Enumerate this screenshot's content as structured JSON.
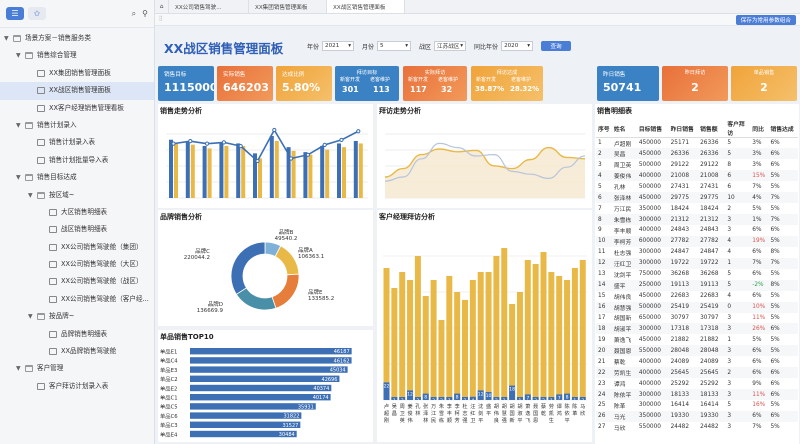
{
  "sidebar": {
    "tabs": [
      {
        "name": "list-icon",
        "glyph": "☰"
      },
      {
        "name": "star-icon",
        "glyph": "✩"
      }
    ],
    "tools": [
      {
        "name": "search-icon",
        "glyph": "🔍"
      },
      {
        "name": "filter-icon",
        "glyph": "⚲"
      }
    ],
    "tree": [
      {
        "text": "场景方案－销售服务类",
        "level": 0,
        "arrow": "▼",
        "icon": "folder"
      },
      {
        "text": "销售综合管理",
        "level": 1,
        "arrow": "▼",
        "icon": "folder"
      },
      {
        "text": "XX集团销售管理面板",
        "level": 2,
        "arrow": "",
        "icon": "doc"
      },
      {
        "text": "XX战区销售管理面板",
        "level": 2,
        "arrow": "",
        "icon": "doc",
        "selected": true
      },
      {
        "text": "XX客户经理销售管理看板",
        "level": 2,
        "arrow": "",
        "icon": "doc"
      },
      {
        "text": "销售计划录入",
        "level": 1,
        "arrow": "▼",
        "icon": "folder"
      },
      {
        "text": "销售计划录入表",
        "level": 2,
        "arrow": "",
        "icon": "doc"
      },
      {
        "text": "销售计划批量导入表",
        "level": 2,
        "arrow": "",
        "icon": "doc"
      },
      {
        "text": "销售目标达成",
        "level": 1,
        "arrow": "▼",
        "icon": "folder"
      },
      {
        "text": "按区域~",
        "level": 2,
        "arrow": "▼",
        "icon": "folder"
      },
      {
        "text": "大区销售明细表",
        "level": 3,
        "arrow": "",
        "icon": "doc"
      },
      {
        "text": "战区销售明细表",
        "level": 3,
        "arrow": "",
        "icon": "doc"
      },
      {
        "text": "XX公司销售驾驶舱（集团）",
        "level": 3,
        "arrow": "",
        "icon": "doc"
      },
      {
        "text": "XX公司销售驾驶舱（大区）",
        "level": 3,
        "arrow": "",
        "icon": "doc"
      },
      {
        "text": "XX公司销售驾驶舱（战区）",
        "level": 3,
        "arrow": "",
        "icon": "doc"
      },
      {
        "text": "XX公司销售驾驶舱（客户经...",
        "level": 3,
        "arrow": "",
        "icon": "doc"
      },
      {
        "text": "按品牌~",
        "level": 2,
        "arrow": "▼",
        "icon": "folder"
      },
      {
        "text": "品牌销售明细表",
        "level": 3,
        "arrow": "",
        "icon": "doc"
      },
      {
        "text": "XX品牌销售驾驶舱",
        "level": 3,
        "arrow": "",
        "icon": "doc"
      },
      {
        "text": "客户管理",
        "level": 1,
        "arrow": "▼",
        "icon": "folder"
      },
      {
        "text": "客户拜访计划录入表",
        "level": 2,
        "arrow": "",
        "icon": "doc"
      }
    ]
  },
  "tabs": [
    "XX公司销售驾驶...",
    "XX集团销售管理面板",
    "XX战区销售管理面板"
  ],
  "save_label": "保存为常用参数组合",
  "page_title": "XX战区销售管理面板",
  "filters": {
    "year_label": "年份",
    "year": "2021",
    "month_label": "月份",
    "month": "5",
    "zone_label": "战区",
    "zone": "江苏战区",
    "compare_label": "同比年份",
    "compare": "2020",
    "query": "查询"
  },
  "kpis": [
    {
      "label": "销售目标",
      "value": "11150000",
      "color": "#3b82c4"
    },
    {
      "label": "实际销售",
      "value": "646203",
      "color": "#e8703a"
    },
    {
      "label": "达成比例",
      "value": "5.80%",
      "color": "#f0a33a"
    }
  ],
  "kpi_groups": [
    {
      "head": "拜访目标",
      "sub1": "新客开发",
      "sub2": "老客维护",
      "v1": "301",
      "v2": "113",
      "color": "#3b82c4"
    },
    {
      "head": "实际拜访",
      "sub1": "新客开发",
      "sub2": "老客维护",
      "v1": "117",
      "v2": "32",
      "color": "#e8703a"
    },
    {
      "head": "拜访达成",
      "sub1": "新客开发",
      "sub2": "老客维护",
      "v1": "38.87%",
      "v2": "28.32%",
      "color": "#f0a33a"
    }
  ],
  "kpis2": [
    {
      "label": "昨日销售",
      "value": "50741",
      "color": "#3b82c4"
    },
    {
      "label": "昨日拜访",
      "value": "2",
      "color": "#e8703a"
    },
    {
      "label": "单品销售",
      "value": "2",
      "color": "#f0a33a"
    }
  ],
  "panels": {
    "sales_trend": "销售走势分析",
    "visit_trend": "拜访走势分析",
    "brand": "品牌销售分析",
    "manager": "客户经理拜访分析",
    "top10": "单品销售TOP10",
    "detail": "销售明细表"
  },
  "colors": {
    "blue": "#3d6fb5",
    "gold": "#e9b948",
    "teal": "#4a8fa8",
    "orange": "#e67d3a"
  },
  "chart_data": [
    {
      "type": "bar",
      "title": "销售走势分析",
      "series": [
        {
          "values": [
            0.94,
            0.9,
            0.84,
            0.9,
            0.88,
            0.72,
            1.0,
            0.82,
            0.74,
            0.84,
            0.88,
            0.92
          ]
        },
        {
          "values": [
            0.88,
            0.86,
            0.8,
            0.84,
            0.84,
            0.64,
            0.92,
            0.76,
            0.7,
            0.78,
            0.82,
            0.88
          ]
        }
      ],
      "line": [
        0.78,
        0.82,
        0.78,
        0.8,
        0.74,
        0.5,
        1.0,
        0.54,
        0.6,
        0.76,
        0.84,
        0.98
      ]
    },
    {
      "type": "area",
      "title": "拜访走势分析",
      "series": [
        {
          "values": [
            0.3,
            0.42,
            0.62,
            0.7,
            0.66,
            0.68,
            0.46,
            0.42,
            0.55,
            0.72,
            0.58,
            0.56
          ]
        },
        {
          "values": [
            0.24,
            0.3,
            0.56,
            0.78,
            0.72,
            0.6,
            0.62,
            0.38,
            0.34,
            0.28,
            0.44,
            0.6
          ]
        }
      ]
    },
    {
      "type": "pie",
      "title": "品牌销售分析",
      "slices": [
        {
          "label": "品牌A",
          "value": 106363.1,
          "color": "#e9b948"
        },
        {
          "label": "品牌B",
          "value": 49540.2,
          "color": "#7fb1d8"
        },
        {
          "label": "品牌C",
          "value": 220044.2,
          "color": "#3d6fb5"
        },
        {
          "label": "品牌D",
          "value": 136669.9,
          "color": "#4a8fa8"
        },
        {
          "label": "品牌E",
          "value": 133585.2,
          "color": "#e67d3a"
        }
      ]
    },
    {
      "type": "bar",
      "title": "单品销售TOP10",
      "categories": [
        "单品E1",
        "单品C4",
        "单品E3",
        "单品C2",
        "单品E2",
        "单品C1",
        "单品C5",
        "单品C6",
        "单品C3",
        "单品E4"
      ],
      "values": [
        46187,
        46162,
        45034,
        42696,
        40374,
        40174,
        35931,
        31822,
        31527,
        30484
      ]
    },
    {
      "type": "bar",
      "title": "客户经理拜访分析",
      "categories": [
        "卢超刚",
        "吴昌",
        "周卫英",
        "姜俊伟",
        "孔林",
        "张泽林",
        "万江民",
        "朱雪栋",
        "李丰顺",
        "李柯芳",
        "杜志强",
        "汪红卫",
        "沈剑平",
        "盛平",
        "胡伟良",
        "胡慧强",
        "胡国新",
        "胡淑平",
        "萧逸飞",
        "聂国恩",
        "蔡乾",
        "劳凯生",
        "谭鸿",
        "陈依平",
        "陈革",
        "马欣"
      ],
      "series": [
        {
          "values": [
            165,
            140,
            160,
            150,
            180,
            130,
            150,
            100,
            155,
            135,
            125,
            150,
            160,
            160,
            180,
            190,
            120,
            135,
            175,
            170,
            185,
            160,
            155,
            150,
            165,
            175
          ]
        },
        {
          "values": [
            22,
            1,
            3,
            12,
            2,
            8,
            3,
            2,
            1,
            8,
            2,
            4,
            12,
            10,
            2,
            1,
            18,
            1,
            7,
            3,
            2,
            1,
            7,
            8,
            1,
            3
          ]
        }
      ]
    }
  ],
  "table": {
    "headers": [
      "序号",
      "姓名",
      "目标销售",
      "昨日销售",
      "销售额",
      "客户拜访",
      "同比",
      "销售达成"
    ],
    "rows": [
      [
        "1",
        "卢超刚",
        "450000",
        "25171",
        "26336",
        "5",
        "3%",
        "6%"
      ],
      [
        "2",
        "吴昌",
        "450000",
        "26336",
        "26336",
        "5",
        "3%",
        "6%"
      ],
      [
        "3",
        "周卫英",
        "500000",
        "29122",
        "29122",
        "8",
        "3%",
        "6%"
      ],
      [
        "4",
        "姜俊伟",
        "400000",
        "21008",
        "21008",
        "6",
        "15%",
        "5%"
      ],
      [
        "5",
        "孔林",
        "500000",
        "27431",
        "27431",
        "6",
        "7%",
        "5%"
      ],
      [
        "6",
        "张泽林",
        "450000",
        "29775",
        "29775",
        "10",
        "4%",
        "7%"
      ],
      [
        "7",
        "万江民",
        "350000",
        "18424",
        "18424",
        "2",
        "5%",
        "5%"
      ],
      [
        "8",
        "朱雪栋",
        "300000",
        "21312",
        "21312",
        "3",
        "1%",
        "7%"
      ],
      [
        "9",
        "李丰顺",
        "400000",
        "24843",
        "24843",
        "3",
        "6%",
        "6%"
      ],
      [
        "10",
        "李柯芳",
        "600000",
        "27782",
        "27782",
        "4",
        "19%",
        "5%"
      ],
      [
        "11",
        "杜志强",
        "300000",
        "24847",
        "24847",
        "4",
        "6%",
        "8%"
      ],
      [
        "12",
        "汪红卫",
        "300000",
        "19722",
        "19722",
        "1",
        "7%",
        "7%"
      ],
      [
        "13",
        "沈剑平",
        "750000",
        "36268",
        "36268",
        "5",
        "6%",
        "5%"
      ],
      [
        "14",
        "盛平",
        "250000",
        "19113",
        "19113",
        "5",
        "-2%",
        "8%"
      ],
      [
        "15",
        "胡伟良",
        "450000",
        "22683",
        "22683",
        "4",
        "6%",
        "5%"
      ],
      [
        "16",
        "胡慧强",
        "500000",
        "25419",
        "25419",
        "0",
        "10%",
        "5%"
      ],
      [
        "17",
        "胡国新",
        "650000",
        "30797",
        "30797",
        "3",
        "11%",
        "5%"
      ],
      [
        "18",
        "胡淑平",
        "300000",
        "17318",
        "17318",
        "3",
        "26%",
        "6%"
      ],
      [
        "19",
        "萧逸飞",
        "450000",
        "21882",
        "21882",
        "1",
        "5%",
        "5%"
      ],
      [
        "20",
        "聂国恩",
        "550000",
        "28048",
        "28048",
        "3",
        "6%",
        "5%"
      ],
      [
        "21",
        "蔡乾",
        "400000",
        "24089",
        "24089",
        "3",
        "6%",
        "6%"
      ],
      [
        "22",
        "劳凯生",
        "400000",
        "25645",
        "25645",
        "2",
        "6%",
        "6%"
      ],
      [
        "23",
        "谭鸿",
        "400000",
        "25292",
        "25292",
        "3",
        "9%",
        "6%"
      ],
      [
        "24",
        "陈依平",
        "300000",
        "18133",
        "18133",
        "3",
        "11%",
        "6%"
      ],
      [
        "25",
        "陈革",
        "300000",
        "16414",
        "16414",
        "5",
        "16%",
        "5%"
      ],
      [
        "26",
        "马光",
        "350000",
        "19330",
        "19330",
        "3",
        "6%",
        "6%"
      ],
      [
        "27",
        "马欣",
        "550000",
        "24482",
        "24482",
        "3",
        "7%",
        "5%"
      ]
    ]
  }
}
